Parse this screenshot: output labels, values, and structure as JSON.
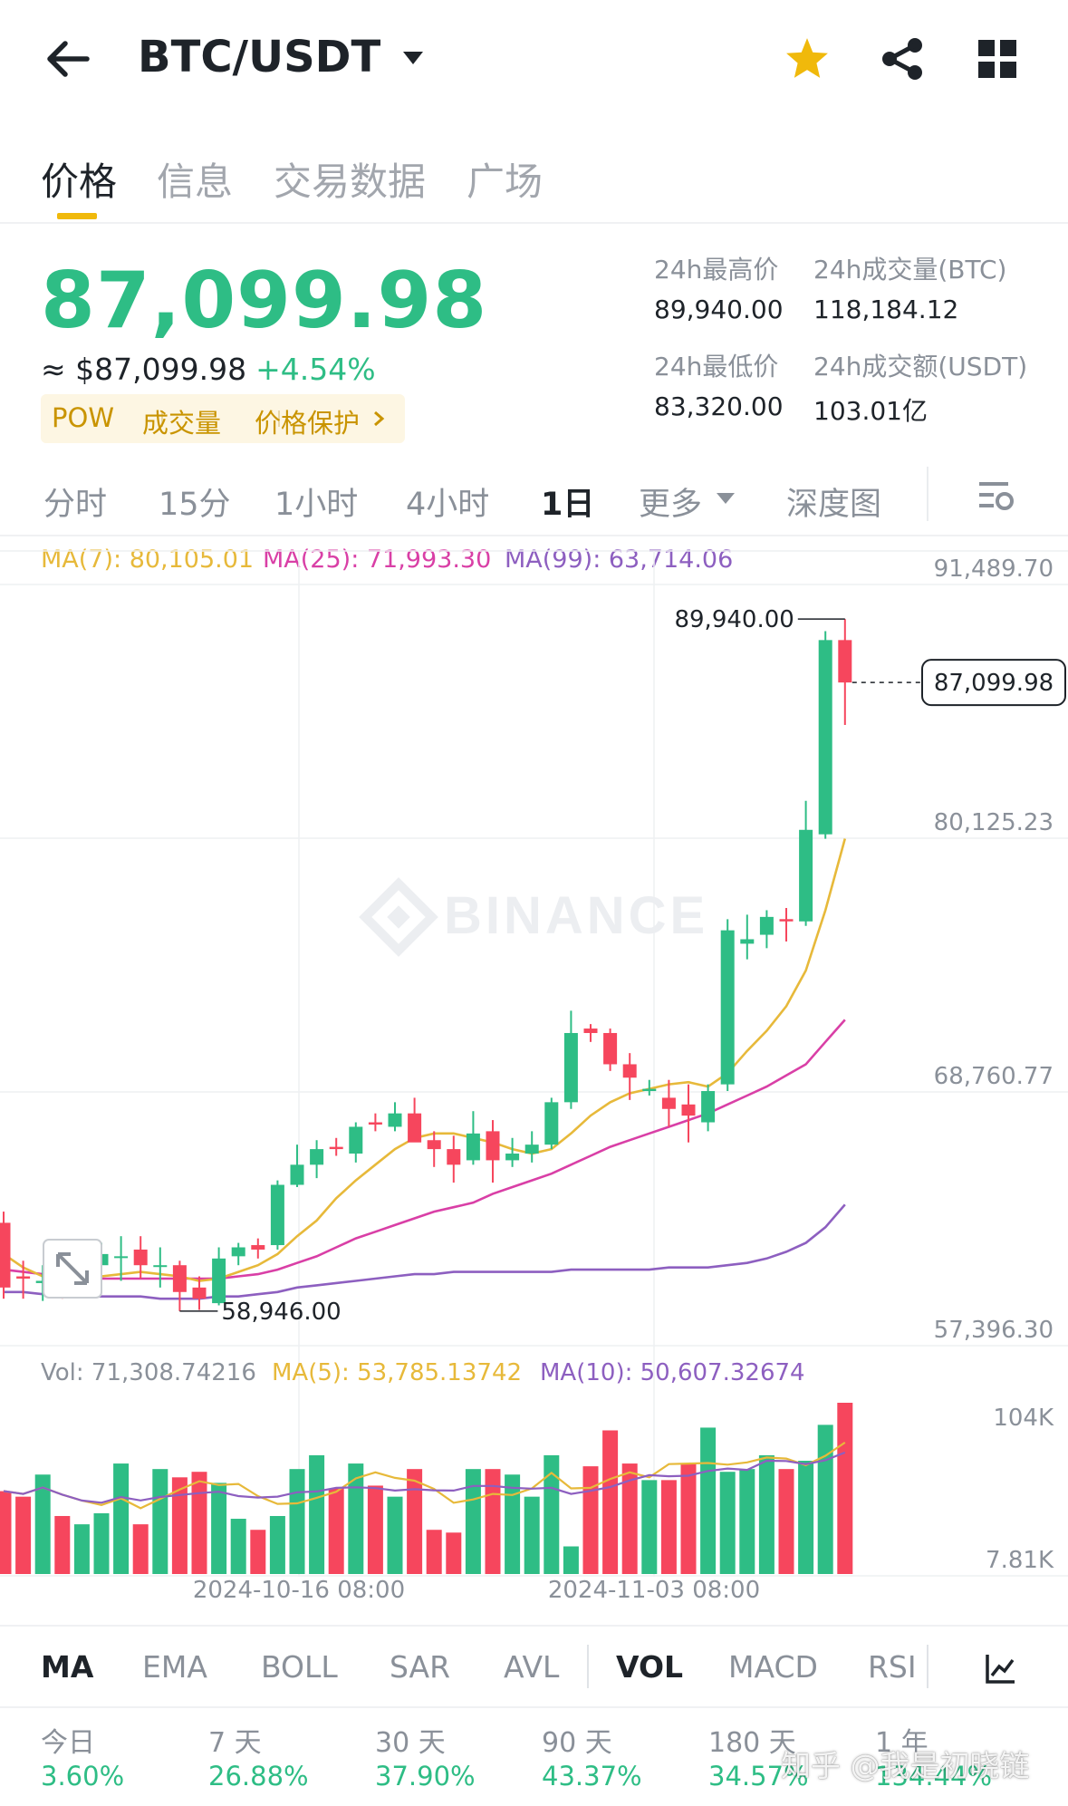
{
  "header": {
    "pair": "BTC/USDT",
    "icons": [
      "back-arrow-icon",
      "dropdown-caret-icon",
      "star-icon",
      "share-icon",
      "grid-icon"
    ]
  },
  "tabs": [
    {
      "label": "价格",
      "active": true
    },
    {
      "label": "信息",
      "active": false
    },
    {
      "label": "交易数据",
      "active": false
    },
    {
      "label": "广场",
      "active": false
    }
  ],
  "price": {
    "last": "87,099.98",
    "usd": "≈ $87,099.98",
    "change": "+4.54%",
    "tags": [
      "POW",
      "成交量",
      "价格保护"
    ],
    "stats": {
      "high_label": "24h最高价",
      "high_value": "89,940.00",
      "vol_btc_label": "24h成交量(BTC)",
      "vol_btc_value": "118,184.12",
      "low_label": "24h最低价",
      "low_value": "83,320.00",
      "vol_usdt_label": "24h成交额(USDT)",
      "vol_usdt_value": "103.01亿"
    }
  },
  "timeframes": [
    {
      "label": "分时",
      "active": false
    },
    {
      "label": "15分",
      "active": false
    },
    {
      "label": "1小时",
      "active": false
    },
    {
      "label": "4小时",
      "active": false
    },
    {
      "label": "1日",
      "active": true
    },
    {
      "label": "更多",
      "active": false
    },
    {
      "label": "深度图",
      "active": false
    }
  ],
  "ma_legend": {
    "ma7": "MA(7): 80,105.01",
    "ma25": "MA(25): 71,993.30",
    "ma99": "MA(99): 63,714.06"
  },
  "vol_legend": {
    "vol": "Vol: 71,308.74216",
    "ma5": "MA(5): 53,785.13742",
    "ma10": "MA(10): 50,607.32674"
  },
  "axis": {
    "price_ticks": [
      "91,489.70",
      "80,125.23",
      "68,760.77",
      "57,396.30"
    ],
    "vol_ticks": [
      "104K",
      "7.81K"
    ],
    "dates": [
      "2024-10-16 08:00",
      "2024-11-03 08:00"
    ],
    "high_marker": "89,940.00",
    "low_marker": "58,946.00",
    "current_marker": "87,099.98"
  },
  "watermark": "BINANCE",
  "colors": {
    "up": "#2ebd85",
    "down": "#f6465d",
    "ma7": "#e7b93a",
    "ma25": "#d93fa6",
    "ma99": "#8d5fc0",
    "accent": "#f0b90b"
  },
  "indicators": [
    {
      "label": "MA",
      "active": true
    },
    {
      "label": "EMA",
      "active": false
    },
    {
      "label": "BOLL",
      "active": false
    },
    {
      "label": "SAR",
      "active": false
    },
    {
      "label": "AVL",
      "active": false
    },
    {
      "label": "VOL",
      "active": true
    },
    {
      "label": "MACD",
      "active": false
    },
    {
      "label": "RSI",
      "active": false
    }
  ],
  "performance": [
    {
      "label": "今日",
      "value": "3.60%"
    },
    {
      "label": "7 天",
      "value": "26.88%"
    },
    {
      "label": "30 天",
      "value": "37.90%"
    },
    {
      "label": "90 天",
      "value": "43.37%"
    },
    {
      "label": "180 天",
      "value": "34.57%"
    },
    {
      "label": "1 年",
      "value": "134.44%"
    }
  ],
  "overlay_watermark": "知乎 @我是初晓链",
  "chart_data": {
    "type": "candlestick",
    "price_range": [
      57396.3,
      91489.7
    ],
    "candles": [
      {
        "o": 62900,
        "h": 63400,
        "l": 59500,
        "c": 60000
      },
      {
        "o": 60500,
        "h": 61200,
        "l": 59500,
        "c": 60400
      },
      {
        "o": 60200,
        "h": 61000,
        "l": 59400,
        "c": 60300
      },
      {
        "o": 60500,
        "h": 61200,
        "l": 59500,
        "c": 60300
      },
      {
        "o": 60300,
        "h": 61500,
        "l": 59600,
        "c": 61200
      },
      {
        "o": 61000,
        "h": 62000,
        "l": 60200,
        "c": 61500
      },
      {
        "o": 61400,
        "h": 62300,
        "l": 60300,
        "c": 61400
      },
      {
        "o": 61700,
        "h": 62300,
        "l": 60400,
        "c": 61000
      },
      {
        "o": 61000,
        "h": 61800,
        "l": 60000,
        "c": 61000
      },
      {
        "o": 61000,
        "h": 61200,
        "l": 58946,
        "c": 59800
      },
      {
        "o": 60000,
        "h": 60500,
        "l": 59000,
        "c": 59500
      },
      {
        "o": 59300,
        "h": 61800,
        "l": 59200,
        "c": 61300
      },
      {
        "o": 61400,
        "h": 62000,
        "l": 61000,
        "c": 61800
      },
      {
        "o": 61900,
        "h": 62200,
        "l": 61300,
        "c": 61700
      },
      {
        "o": 61900,
        "h": 64800,
        "l": 61700,
        "c": 64600
      },
      {
        "o": 64600,
        "h": 66400,
        "l": 64500,
        "c": 65500
      },
      {
        "o": 65500,
        "h": 66600,
        "l": 64900,
        "c": 66200
      },
      {
        "o": 66300,
        "h": 66700,
        "l": 65900,
        "c": 66200
      },
      {
        "o": 66000,
        "h": 67400,
        "l": 65600,
        "c": 67200
      },
      {
        "o": 67400,
        "h": 67800,
        "l": 67000,
        "c": 67300
      },
      {
        "o": 67200,
        "h": 68300,
        "l": 67000,
        "c": 67800
      },
      {
        "o": 67800,
        "h": 68500,
        "l": 66600,
        "c": 66500
      },
      {
        "o": 66600,
        "h": 67000,
        "l": 65400,
        "c": 66200
      },
      {
        "o": 66200,
        "h": 66800,
        "l": 64700,
        "c": 65500
      },
      {
        "o": 65700,
        "h": 67900,
        "l": 65500,
        "c": 66900
      },
      {
        "o": 67000,
        "h": 67500,
        "l": 64700,
        "c": 65700
      },
      {
        "o": 65700,
        "h": 66700,
        "l": 65400,
        "c": 66000
      },
      {
        "o": 66000,
        "h": 67000,
        "l": 65600,
        "c": 66400
      },
      {
        "o": 66400,
        "h": 68500,
        "l": 66200,
        "c": 68300
      },
      {
        "o": 68300,
        "h": 72400,
        "l": 68000,
        "c": 71400
      },
      {
        "o": 71600,
        "h": 71800,
        "l": 71000,
        "c": 71400
      },
      {
        "o": 71400,
        "h": 71600,
        "l": 69700,
        "c": 70000
      },
      {
        "o": 70000,
        "h": 70500,
        "l": 68400,
        "c": 69400
      },
      {
        "o": 68800,
        "h": 69300,
        "l": 68600,
        "c": 68900
      },
      {
        "o": 68500,
        "h": 69300,
        "l": 67200,
        "c": 68000
      },
      {
        "o": 68200,
        "h": 69100,
        "l": 66500,
        "c": 67700
      },
      {
        "o": 67400,
        "h": 69100,
        "l": 67000,
        "c": 68800
      },
      {
        "o": 69100,
        "h": 76500,
        "l": 68800,
        "c": 76000
      },
      {
        "o": 75400,
        "h": 76700,
        "l": 74700,
        "c": 75600
      },
      {
        "o": 75800,
        "h": 76900,
        "l": 75200,
        "c": 76600
      },
      {
        "o": 76500,
        "h": 77000,
        "l": 75500,
        "c": 76400
      },
      {
        "o": 76400,
        "h": 81800,
        "l": 76200,
        "c": 80500
      },
      {
        "o": 80300,
        "h": 89400,
        "l": 80100,
        "c": 89000
      },
      {
        "o": 89000,
        "h": 89940,
        "l": 85200,
        "c": 87099.98
      }
    ],
    "ma7": [
      61500,
      60900,
      60500,
      60300,
      60300,
      60500,
      60600,
      60700,
      60600,
      60500,
      60300,
      60400,
      60700,
      61000,
      61500,
      62300,
      63000,
      64000,
      64800,
      65500,
      66200,
      66700,
      66900,
      66900,
      66700,
      66500,
      66200,
      66000,
      66200,
      66900,
      67700,
      68300,
      68700,
      68900,
      69100,
      69200,
      69000,
      69600,
      70600,
      71500,
      72600,
      74200,
      76900,
      80105.01
    ],
    "ma25": [
      60800,
      60700,
      60600,
      60500,
      60500,
      60400,
      60400,
      60400,
      60400,
      60400,
      60400,
      60400,
      60500,
      60600,
      60800,
      61100,
      61400,
      61800,
      62200,
      62500,
      62800,
      63100,
      63400,
      63600,
      63800,
      64200,
      64500,
      64800,
      65100,
      65500,
      65900,
      66300,
      66600,
      66900,
      67200,
      67500,
      67800,
      68200,
      68600,
      69000,
      69500,
      70000,
      71000,
      71993.3
    ],
    "ma99": [
      59800,
      59800,
      59700,
      59700,
      59600,
      59600,
      59600,
      59600,
      59500,
      59500,
      59500,
      59600,
      59600,
      59700,
      59800,
      60000,
      60100,
      60200,
      60300,
      60400,
      60500,
      60600,
      60600,
      60700,
      60700,
      60700,
      60700,
      60700,
      60700,
      60800,
      60800,
      60800,
      60800,
      60800,
      60900,
      60900,
      60900,
      61000,
      61100,
      61300,
      61600,
      62000,
      62700,
      63714.06
    ],
    "volume": [
      30,
      28,
      36,
      21,
      18,
      22,
      40,
      18,
      38,
      35,
      37,
      33,
      20,
      16,
      21,
      38,
      43,
      31,
      40,
      32,
      28,
      38,
      16,
      15,
      38,
      38,
      36,
      28,
      43,
      10,
      39,
      52,
      40,
      34,
      34,
      40,
      53,
      37,
      38,
      43,
      38,
      41,
      54,
      62
    ]
  }
}
